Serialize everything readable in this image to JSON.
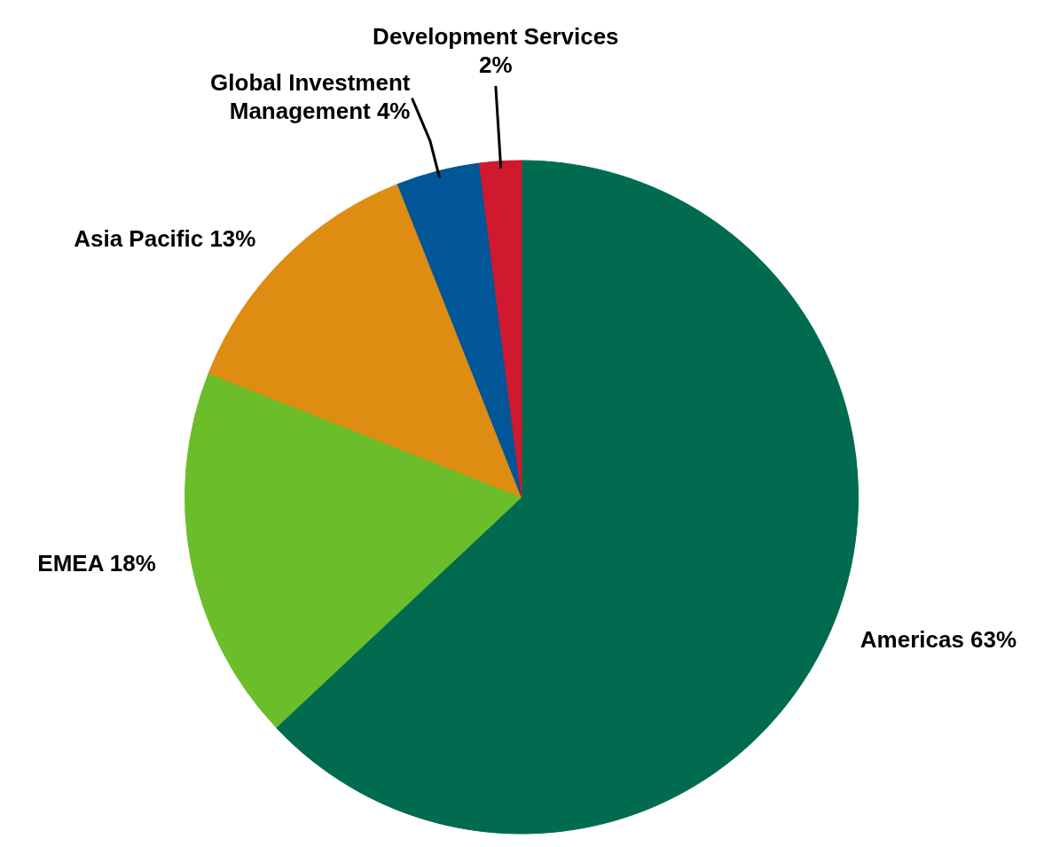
{
  "chart_data": {
    "type": "pie",
    "categories": [
      "Americas",
      "EMEA",
      "Asia Pacific",
      "Global Investment Management",
      "Development Services"
    ],
    "values": [
      63,
      18,
      13,
      4,
      2
    ],
    "value_labels": [
      "63%",
      "18%",
      "13%",
      "4%",
      "2%"
    ],
    "colors": [
      "#006b4f",
      "#6bbd2a",
      "#de8c12",
      "#005696",
      "#d0182f"
    ],
    "legend": false
  }
}
